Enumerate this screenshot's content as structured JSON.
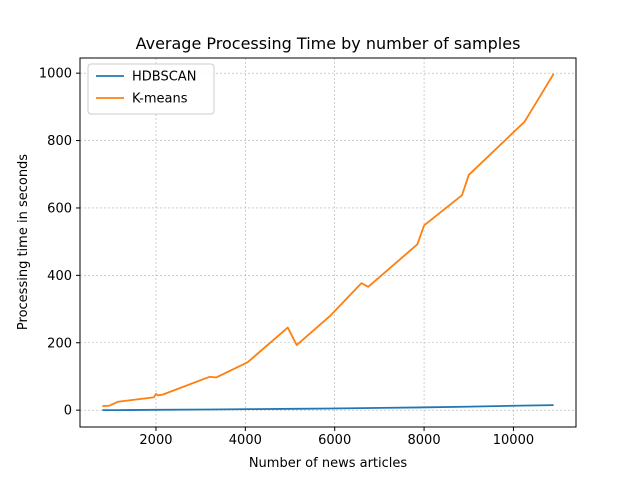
{
  "chart_data": {
    "type": "line",
    "title": "Average Processing Time by number of samples",
    "xlabel": "Number of news articles",
    "ylabel": "Processing time in seconds",
    "xlim": [
      300,
      11400
    ],
    "ylim": [
      -50,
      1045
    ],
    "xticks": [
      2000,
      4000,
      6000,
      8000,
      10000
    ],
    "yticks": [
      0,
      200,
      400,
      600,
      800,
      1000
    ],
    "grid": true,
    "legend_position": "top-left",
    "series": [
      {
        "name": "HDBSCAN",
        "color": "#1f77b4",
        "x": [
          800,
          1000,
          1150,
          2000,
          3200,
          4100,
          5100,
          5900,
          6600,
          7900,
          8900,
          10000,
          10900
        ],
        "y": [
          0,
          0,
          0,
          1,
          2,
          3,
          4,
          5,
          6,
          8,
          10,
          13,
          15
        ]
      },
      {
        "name": "K-means",
        "color": "#ff7f0e",
        "x": [
          800,
          950,
          1150,
          1950,
          2000,
          2050,
          2150,
          3200,
          3350,
          4050,
          4950,
          5150,
          5900,
          6600,
          6750,
          7850,
          8000,
          8850,
          9000,
          10250,
          10900
        ],
        "y": [
          12,
          13,
          25,
          38,
          48,
          44,
          46,
          99,
          97,
          142,
          245,
          193,
          280,
          377,
          366,
          492,
          548,
          638,
          698,
          856,
          998
        ]
      }
    ]
  }
}
